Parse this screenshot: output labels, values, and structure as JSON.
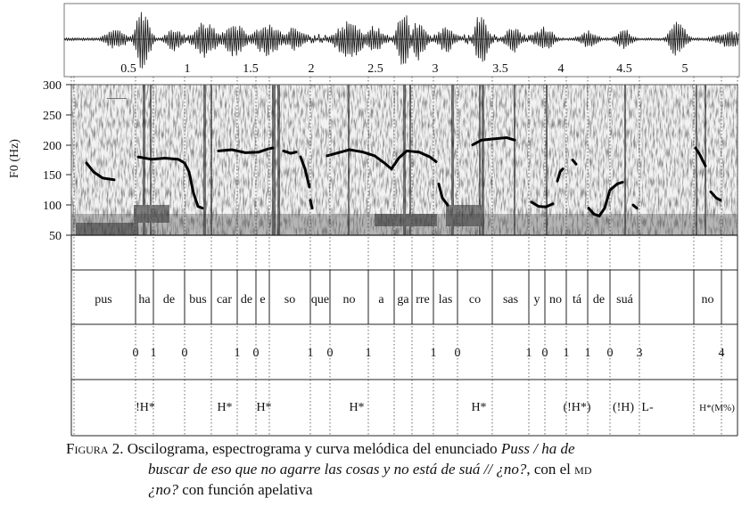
{
  "figure": {
    "time_ticks": [
      "0.5",
      "1",
      "1.5",
      "2",
      "2.5",
      "3",
      "3.5",
      "4",
      "4.5",
      "5"
    ],
    "f0_axis": {
      "label": "F0 (Hz)",
      "ticks": [
        "300",
        "250",
        "200",
        "150",
        "100",
        "50"
      ]
    },
    "syllables": [
      "pus",
      "ha",
      "de",
      "bus",
      "car",
      "de",
      "e",
      "so",
      "que",
      "no",
      "a",
      "ga",
      "rre",
      "las",
      "co",
      "sas",
      "y",
      "no",
      "tá",
      "de",
      "suá",
      "no"
    ],
    "break_indices": [
      "0",
      "1",
      "0",
      "1",
      "0",
      "1",
      "0",
      "1",
      "1",
      "0",
      "1",
      "0",
      "1",
      "1",
      "0",
      "3",
      "4"
    ],
    "tones": [
      "!H*",
      "H*",
      "H*",
      "H*",
      "H*",
      "(!H*)",
      "(!H)",
      "L-",
      "H*(M%)"
    ]
  },
  "caption": {
    "label": "Figura",
    "number": "2.",
    "text_1": "Oscilograma, espectrograma y curva melódica del enunciado",
    "italic_1": "Puss / ha de",
    "italic_2": "buscar de eso que no agarre las cosas y no está de suá // ¿no?",
    "text_2": ", con el",
    "md": "md",
    "italic_3": "¿no?",
    "text_3": "con función apelativa"
  }
}
